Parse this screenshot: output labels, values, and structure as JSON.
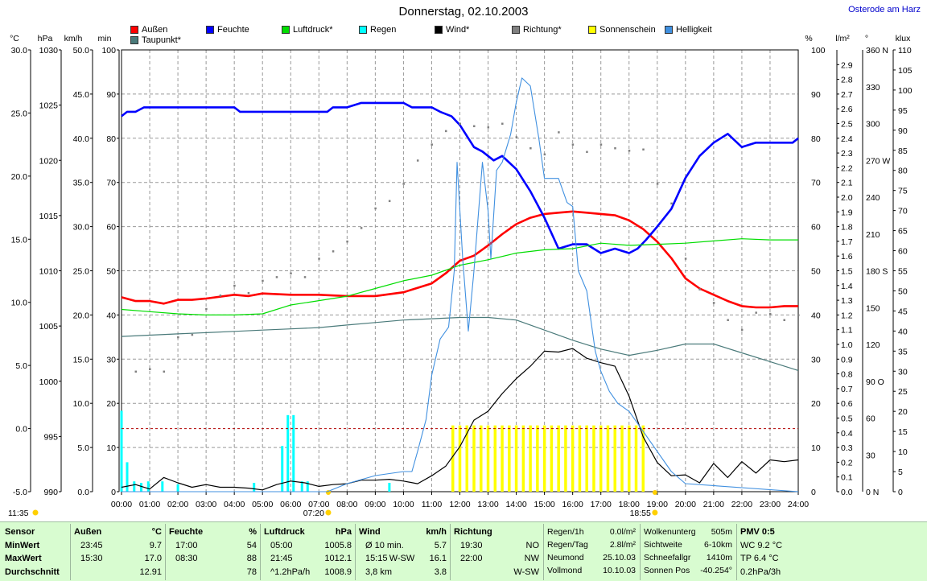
{
  "header": {
    "title": "Donnerstag, 02.10.2003",
    "location": "Osterode am Harz"
  },
  "legend": [
    {
      "label": "Außen",
      "color": "#ff0000"
    },
    {
      "label": "Taupunkt*",
      "color": "#4a7a7a"
    },
    {
      "label": "Feuchte",
      "color": "#0000ff"
    },
    {
      "label": "Luftdruck*",
      "color": "#00dd00"
    },
    {
      "label": "Regen",
      "color": "#00ffff"
    },
    {
      "label": "Wind*",
      "color": "#000000"
    },
    {
      "label": "Richtung*",
      "color": "#808080"
    },
    {
      "label": "Sonnenschein",
      "color": "#ffff00"
    },
    {
      "label": "Helligkeit",
      "color": "#4090e0"
    }
  ],
  "axes": {
    "units": {
      "temp": "°C",
      "press": "hPa",
      "wind": "km/h",
      "min": "min",
      "pct": "%",
      "rain": "l/m²",
      "dir": "°",
      "lux": "klux"
    },
    "temp": [
      "30.0",
      "25.0",
      "20.0",
      "15.0",
      "10.0",
      "5.0",
      "0.0",
      "-5.0"
    ],
    "press": [
      "1030",
      "1025",
      "1020",
      "1015",
      "1010",
      "1005",
      "1000",
      "995",
      "990"
    ],
    "wind": [
      "50.0",
      "45.0",
      "40.0",
      "35.0",
      "30.0",
      "25.0",
      "20.0",
      "15.0",
      "10.0",
      "5.0",
      "0.0"
    ],
    "min": [
      "100",
      "90",
      "80",
      "70",
      "60",
      "50",
      "40",
      "30",
      "20",
      "10",
      "0"
    ],
    "pct": [
      "100",
      "90",
      "80",
      "70",
      "60",
      "50",
      "40",
      "30",
      "20",
      "10",
      "0"
    ],
    "rain": [
      "2.9",
      "2.8",
      "2.7",
      "2.6",
      "2.5",
      "2.4",
      "2.3",
      "2.2",
      "2.1",
      "2.0",
      "1.9",
      "1.8",
      "1.7",
      "1.6",
      "1.5",
      "1.4",
      "1.3",
      "1.2",
      "1.1",
      "1.0",
      "0.9",
      "0.8",
      "0.7",
      "0.6",
      "0.5",
      "0.4",
      "0.3",
      "0.2",
      "0.1",
      "0.0"
    ],
    "dir": [
      {
        "v": "360 N"
      },
      {
        "v": "330"
      },
      {
        "v": "300"
      },
      {
        "v": "270 W"
      },
      {
        "v": "240"
      },
      {
        "v": "210"
      },
      {
        "v": "180 S"
      },
      {
        "v": "150"
      },
      {
        "v": "120"
      },
      {
        "v": "90 O"
      },
      {
        "v": "60"
      },
      {
        "v": "30"
      },
      {
        "v": "0 N"
      }
    ],
    "lux": [
      "110",
      "105",
      "100",
      "95",
      "90",
      "85",
      "80",
      "75",
      "70",
      "65",
      "60",
      "55",
      "50",
      "45",
      "40",
      "35",
      "30",
      "25",
      "20",
      "15",
      "10",
      "5",
      "0"
    ],
    "time": [
      "00:00",
      "01:00",
      "02:00",
      "03:00",
      "04:00",
      "05:00",
      "06:00",
      "07:00",
      "08:00",
      "09:00",
      "10:00",
      "11:00",
      "12:00",
      "13:00",
      "14:00",
      "15:00",
      "16:00",
      "17:00",
      "18:00",
      "19:00",
      "20:00",
      "21:00",
      "22:00",
      "23:00",
      "24:00"
    ],
    "sunrise": "07:20",
    "sunset": "18:55",
    "moonrise": "11:35"
  },
  "chart_data": {
    "type": "line",
    "title": "Donnerstag, 02.10.2003",
    "xlabel": "",
    "xlim": [
      0,
      24
    ],
    "series": [
      {
        "name": "Außen",
        "unit": "°C",
        "x": [
          0,
          0.5,
          1,
          1.5,
          2,
          2.5,
          3,
          4,
          4.5,
          5,
          6,
          7,
          8,
          9,
          10,
          11,
          11.5,
          12,
          12.5,
          13,
          13.5,
          14,
          14.5,
          15,
          15.5,
          16,
          16.5,
          17,
          17.5,
          18,
          18.5,
          19,
          19.5,
          20,
          20.5,
          21,
          21.5,
          22,
          22.5,
          23,
          23.5,
          24
        ],
        "y": [
          10.4,
          10.1,
          10.1,
          9.9,
          10.2,
          10.2,
          10.3,
          10.6,
          10.5,
          10.7,
          10.6,
          10.6,
          10.5,
          10.5,
          10.8,
          11.5,
          12.3,
          13.3,
          13.7,
          14.5,
          15.4,
          16.2,
          16.7,
          17.0,
          17.1,
          17.2,
          17.1,
          17.0,
          16.9,
          16.5,
          15.8,
          14.8,
          13.5,
          11.9,
          11.1,
          10.6,
          10.1,
          9.7,
          9.6,
          9.6,
          9.7,
          9.7
        ]
      },
      {
        "name": "Taupunkt*",
        "unit": "°C",
        "x": [
          0,
          1,
          2,
          3,
          4,
          5,
          6,
          7,
          8,
          9,
          10,
          11,
          12,
          13,
          14,
          15,
          16,
          17,
          18,
          19,
          20,
          21,
          22,
          23,
          24
        ],
        "y": [
          7.3,
          7.4,
          7.5,
          7.6,
          7.7,
          7.8,
          7.9,
          8.0,
          8.2,
          8.4,
          8.6,
          8.7,
          8.8,
          8.8,
          8.6,
          7.8,
          7.0,
          6.3,
          5.8,
          6.2,
          6.7,
          6.7,
          6.0,
          5.3,
          4.6
        ]
      },
      {
        "name": "Feuchte",
        "unit": "%",
        "x": [
          0,
          0.2,
          0.5,
          0.8,
          1,
          2,
          3,
          4,
          4.2,
          4.5,
          5,
          6,
          7,
          7.3,
          7.5,
          8,
          8.5,
          9,
          10,
          10.3,
          11,
          11.3,
          11.7,
          12,
          12.5,
          12.8,
          13.2,
          13.5,
          14,
          14.5,
          15,
          15.5,
          16,
          16.5,
          17,
          17.5,
          18,
          18.3,
          18.6,
          19,
          19.5,
          20,
          20.5,
          21,
          21.5,
          22,
          22.5,
          23,
          23.5,
          23.8,
          24
        ],
        "y": [
          85,
          86,
          86,
          87,
          87,
          87,
          87,
          87,
          86,
          86,
          86,
          86,
          86,
          86,
          87,
          87,
          88,
          88,
          88,
          87,
          87,
          86,
          85,
          83,
          78,
          77,
          75,
          76,
          73,
          68,
          62,
          55,
          56,
          56,
          54,
          55,
          54,
          55,
          57,
          60,
          64,
          71,
          76,
          79,
          81,
          78,
          79,
          79,
          79,
          79,
          80
        ]
      },
      {
        "name": "Luftdruck*",
        "unit": "hPa",
        "x": [
          0,
          1,
          2,
          3,
          4,
          5,
          6,
          7,
          8,
          9,
          10,
          11,
          12,
          13,
          14,
          15,
          16,
          17,
          18,
          19,
          20,
          21,
          22,
          23,
          24
        ],
        "y": [
          1006.5,
          1006.3,
          1006.1,
          1006.0,
          1006.0,
          1006.1,
          1006.9,
          1007.3,
          1007.7,
          1008.4,
          1009.1,
          1009.6,
          1010.5,
          1011.0,
          1011.6,
          1011.9,
          1012.0,
          1012.5,
          1012.3,
          1012.4,
          1012.5,
          1012.7,
          1012.9,
          1012.8,
          1012.8
        ]
      },
      {
        "name": "Wind*",
        "unit": "km/h",
        "x": [
          0,
          0.5,
          1,
          1.5,
          2,
          2.5,
          3,
          3.5,
          4,
          4.5,
          5,
          5.5,
          6,
          6.5,
          7,
          7.5,
          8,
          8.5,
          9,
          9.5,
          10,
          10.5,
          11,
          11.5,
          12,
          12.5,
          13,
          13.5,
          14,
          14.5,
          15,
          15.5,
          16,
          16.5,
          17,
          17.5,
          18,
          18.5,
          19,
          19.5,
          20,
          20.5,
          21,
          21.5,
          22,
          22.5,
          23,
          23.5,
          24
        ],
        "y": [
          0.5,
          0.8,
          0.3,
          1.6,
          1.0,
          0.5,
          0.8,
          0.5,
          0.5,
          0.4,
          0.2,
          0.8,
          1.2,
          1.0,
          0.6,
          0.8,
          0.9,
          1.3,
          1.3,
          1.4,
          1.2,
          0.9,
          1.8,
          2.9,
          5.1,
          8.1,
          9.1,
          11.1,
          12.8,
          14.2,
          15.9,
          15.8,
          16.2,
          15.1,
          14.6,
          14.2,
          10.8,
          6.2,
          3.3,
          1.8,
          1.9,
          1.0,
          3.2,
          1.6,
          3.4,
          2.1,
          3.6,
          3.4,
          3.6
        ]
      },
      {
        "name": "Richtung*",
        "unit": "°",
        "x": [
          0.5,
          1,
          1.5,
          2,
          2.5,
          3,
          3.5,
          4,
          4.5,
          5,
          5.5,
          6,
          6.5,
          7,
          7.5,
          8,
          8.5,
          9,
          9.5,
          10,
          10.5,
          11,
          11.5,
          12,
          12.5,
          13,
          13.5,
          14,
          14.5,
          15,
          15.5,
          16,
          16.5,
          17,
          17.5,
          18,
          18.5,
          19,
          19.5,
          20,
          20.5,
          21,
          21.5,
          22,
          22.5,
          23,
          23.5,
          24
        ],
        "y": [
          98,
          100,
          98,
          126,
          128,
          149,
          160,
          168,
          162,
          172,
          175,
          178,
          175,
          190,
          196,
          204,
          215,
          231,
          237,
          251,
          270,
          283,
          294,
          300,
          298,
          297,
          300,
          289,
          280,
          275,
          293,
          283,
          277,
          283,
          280,
          278,
          279,
          251,
          235,
          190,
          165,
          154,
          140,
          132,
          146,
          145,
          140,
          144
        ]
      },
      {
        "name": "Helligkeit",
        "unit": "klux",
        "x": [
          0,
          6.9,
          7.3,
          8,
          9,
          10,
          10.3,
          10.5,
          10.8,
          11,
          11.3,
          11.6,
          11.8,
          11.9,
          12.1,
          12.3,
          12.5,
          12.6,
          12.8,
          13,
          13.1,
          13.3,
          13.5,
          13.8,
          14,
          14.2,
          14.5,
          14.8,
          15,
          15.2,
          15.5,
          15.8,
          16,
          16.2,
          16.5,
          16.8,
          17,
          17.3,
          17.6,
          18,
          18.5,
          19,
          19.5,
          20,
          24
        ],
        "y": [
          0,
          0,
          0,
          2,
          4,
          5,
          5,
          10,
          18,
          29,
          38,
          41,
          55,
          82,
          58,
          40,
          55,
          64,
          82,
          70,
          58,
          80,
          82,
          89,
          97,
          103,
          101,
          88,
          78,
          78,
          78,
          72,
          71,
          55,
          50,
          35,
          30,
          25,
          22,
          20,
          15,
          10,
          5,
          2,
          0
        ]
      }
    ],
    "rain_bars": {
      "unit": "l/m²",
      "x": [
        0.0,
        0.2,
        0.45,
        0.7,
        0.95,
        1.45,
        2.0,
        4.7,
        5.7,
        5.9,
        6.1,
        6.4,
        6.6,
        9.5
      ],
      "y": [
        0.55,
        0.2,
        0.07,
        0.06,
        0.07,
        0.07,
        0.05,
        0.06,
        0.31,
        0.52,
        0.52,
        0.07,
        0.07,
        0.06
      ]
    },
    "sunshine_bars": {
      "unit": "min",
      "x": [
        11.75,
        12.0,
        12.25,
        12.5,
        12.75,
        13.0,
        13.25,
        13.5,
        13.75,
        14.0,
        14.25,
        14.5,
        14.75,
        15.0,
        15.25,
        15.5,
        15.75,
        16.0,
        16.25,
        16.5,
        16.75,
        17.0,
        17.25,
        17.5,
        17.75,
        18.0,
        18.25,
        18.5
      ],
      "y": [
        15,
        15,
        15,
        15,
        15,
        15,
        15,
        15,
        15,
        15,
        15,
        15,
        15,
        15,
        15,
        15,
        15,
        15,
        15,
        15,
        15,
        15,
        15,
        15,
        15,
        15,
        15,
        15
      ]
    },
    "reference_line_temp": 0.0
  },
  "table": {
    "sensor": {
      "head": "Sensor",
      "rows": [
        "MinWert",
        "MaxWert",
        "Durchschnitt"
      ]
    },
    "aussen": {
      "head": "Außen",
      "unit": "°C",
      "rows": [
        [
          "23:45",
          "9.7"
        ],
        [
          "15:30",
          "17.0"
        ],
        [
          "",
          "12.91"
        ]
      ]
    },
    "feuchte": {
      "head": "Feuchte",
      "unit": "%",
      "rows": [
        [
          "17:00",
          "54"
        ],
        [
          "08:30",
          "88"
        ],
        [
          "",
          "78"
        ]
      ]
    },
    "luftdruck": {
      "head": "Luftdruck",
      "unit": "hPa",
      "rows": [
        [
          "05:00",
          "1005.8"
        ],
        [
          "21:45",
          "1012.1"
        ],
        [
          "^1.2hPa/h",
          "1008.9"
        ]
      ]
    },
    "wind": {
      "head": "Wind",
      "unit": "km/h",
      "rows": [
        [
          "",
          "",
          ""
        ],
        [
          "15:15",
          "W-SW",
          "16.1"
        ],
        [
          "3,8 km",
          "",
          "3.8"
        ]
      ],
      "avg_label": "Ø 10 min.",
      "avg_value": "5.7"
    },
    "richtung": {
      "head": "Richtung",
      "rows": [
        [
          "19:30",
          "NO"
        ],
        [
          "22:00",
          "NW"
        ],
        [
          "",
          "W-SW"
        ]
      ]
    },
    "regen": {
      "rows": [
        [
          "Regen/1h",
          "0.0l/m²"
        ],
        [
          "Regen/Tag",
          "2.8l/m²"
        ],
        [
          "Neumond",
          "25.10.03"
        ],
        [
          "Vollmond",
          "10.10.03"
        ]
      ]
    },
    "wolken": {
      "rows": [
        [
          "Wolkenunterg",
          "505m"
        ],
        [
          "Sichtweite",
          "6-10km"
        ],
        [
          "Schneefallgr",
          "1410m"
        ],
        [
          "Sonnen Pos",
          "-40.254°"
        ]
      ]
    },
    "pmv": {
      "head": "PMV 0:5",
      "rows": [
        "WC 9.2 °C",
        "TP 6.4 °C",
        "0.2hPa/3h"
      ]
    }
  }
}
